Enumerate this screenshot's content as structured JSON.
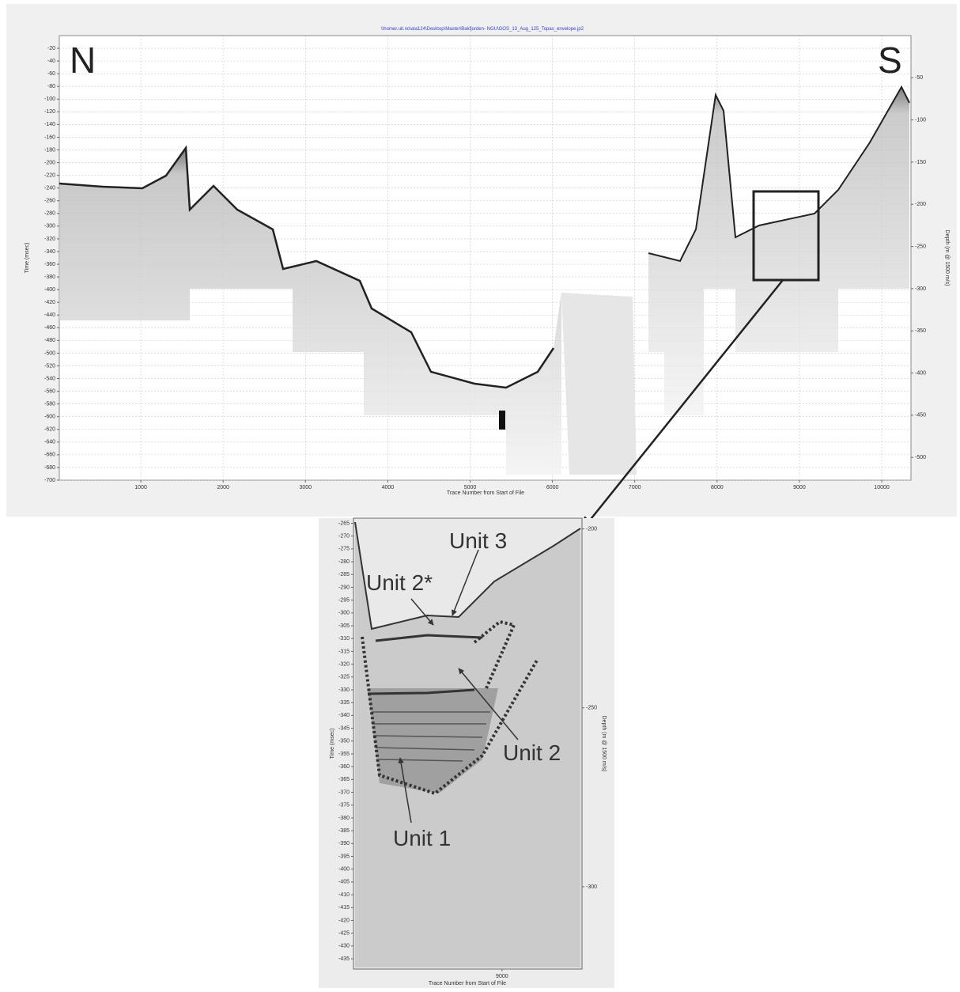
{
  "main_panel": {
    "file_path": "\\\\homer.uit.no\\ala124\\Desktop\\Master\\Bakfjorden- NGU\\GOS_13_Aug_125_Topas_envelope.jp2",
    "left_label": "N",
    "right_label": "S",
    "x_label": "Trace Number from Start of File",
    "y_label": "Time (msec)",
    "y2_label": "Depth (m @ 1500 m/s)",
    "xlim": [
      10,
      10355
    ],
    "xticks": [
      1000,
      2000,
      3000,
      4000,
      5000,
      6000,
      7000,
      8000,
      9000,
      10000
    ],
    "ylim": [
      -700,
      0
    ],
    "yticks": [
      -20,
      -40,
      -60,
      -80,
      -100,
      -120,
      -140,
      -160,
      -180,
      -200,
      -220,
      -240,
      -260,
      -280,
      -300,
      -320,
      -340,
      -360,
      -380,
      -400,
      -420,
      -440,
      -460,
      -480,
      -500,
      -520,
      -540,
      -560,
      -580,
      -600,
      -620,
      -640,
      -660,
      -680,
      -700
    ],
    "y2lim": [
      -527,
      0
    ],
    "y2ticks": [
      -50,
      -100,
      -150,
      -200,
      -250,
      -300,
      -350,
      -400,
      -450,
      -500
    ]
  },
  "inset_panel": {
    "x_label": "Trace Number from Start of File",
    "y_label": "Time (msec)",
    "y2_label": "Depth (m @ 1500 m/s)",
    "xlim": [
      8480,
      9280
    ],
    "xticks": [
      9000
    ],
    "ylim": [
      -439,
      -263
    ],
    "yticks": [
      -265,
      -270,
      -275,
      -280,
      -285,
      -290,
      -295,
      -300,
      -305,
      -310,
      -315,
      -320,
      -325,
      -330,
      -335,
      -340,
      -345,
      -350,
      -355,
      -360,
      -365,
      -370,
      -375,
      -380,
      -385,
      -390,
      -395,
      -400,
      -405,
      -410,
      -415,
      -420,
      -425,
      -430,
      -435
    ],
    "y2lim": [
      -323,
      -197
    ],
    "y2ticks": [
      -200,
      -250,
      -300
    ],
    "units": [
      "Unit 3",
      "Unit 2*",
      "Unit 2",
      "Unit 1"
    ]
  }
}
